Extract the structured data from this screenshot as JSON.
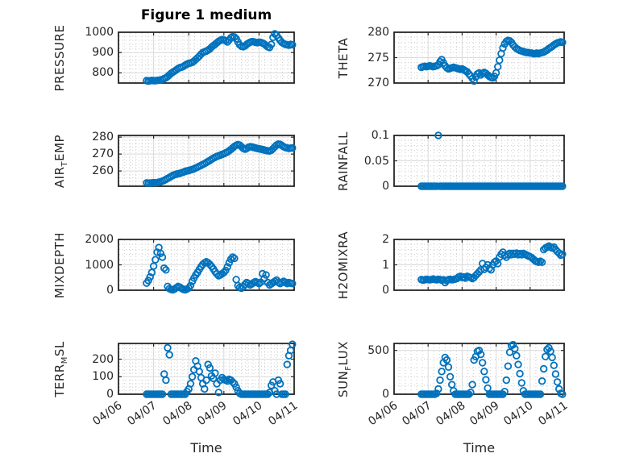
{
  "title": "Figure 1 medium",
  "xlabel": "Time",
  "colors": {
    "marker": "#0072BD",
    "axis": "#262626",
    "grid_major": "#d9d9d9",
    "grid_minor": "#cdcdcd",
    "background": "#ffffff"
  },
  "chart_data": {
    "type": "scatter",
    "title": "Figure 1 medium",
    "xlabel": "Time",
    "marker": "open-circle",
    "grid": true,
    "minor_grid": true,
    "x_unit": "days since 04/06",
    "x_ticks": {
      "values": [
        0,
        1,
        2,
        3,
        4,
        5
      ],
      "labels": [
        "04/06",
        "04/07",
        "04/08",
        "04/09",
        "04/10",
        "04/11"
      ]
    },
    "x": [
      0.8,
      0.85,
      0.9,
      0.95,
      1,
      1.05,
      1.1,
      1.15,
      1.2,
      1.25,
      1.3,
      1.35,
      1.4,
      1.45,
      1.5,
      1.55,
      1.6,
      1.65,
      1.7,
      1.75,
      1.8,
      1.85,
      1.9,
      1.95,
      2,
      2.05,
      2.1,
      2.15,
      2.2,
      2.25,
      2.3,
      2.35,
      2.4,
      2.45,
      2.5,
      2.55,
      2.6,
      2.65,
      2.7,
      2.75,
      2.8,
      2.85,
      2.9,
      2.95,
      3,
      3.05,
      3.1,
      3.15,
      3.2,
      3.25,
      3.3,
      3.35,
      3.4,
      3.45,
      3.5,
      3.55,
      3.6,
      3.65,
      3.7,
      3.75,
      3.8,
      3.85,
      3.9,
      3.95,
      4,
      4.05,
      4.1,
      4.15,
      4.2,
      4.25,
      4.3,
      4.35,
      4.4,
      4.45,
      4.5,
      4.55,
      4.6,
      4.65,
      4.7,
      4.75,
      4.8,
      4.85,
      4.9,
      4.95
    ],
    "plots": [
      {
        "id": "pressure",
        "ylabel": "PRESSURE",
        "ylabel_parts": [
          {
            "text": "PRESSURE",
            "sub": false
          }
        ],
        "ylim": [
          750,
          1000
        ],
        "yticks": [
          800,
          900,
          1000
        ],
        "ytick_labels": [
          "800",
          "900",
          "1000"
        ],
        "minor_y_step": 20,
        "values": [
          762,
          760,
          761,
          763,
          762,
          761,
          763,
          764,
          765,
          768,
          772,
          776,
          782,
          790,
          798,
          804,
          809,
          815,
          822,
          826,
          828,
          832,
          838,
          843,
          847,
          849,
          852,
          858,
          866,
          874,
          882,
          892,
          900,
          904,
          907,
          912,
          918,
          927,
          934,
          940,
          948,
          955,
          960,
          964,
          962,
          958,
          952,
          962,
          973,
          978,
          976,
          968,
          952,
          938,
          931,
          929,
          933,
          940,
          946,
          951,
          954,
          953,
          950,
          949,
          951,
          950,
          947,
          942,
          935,
          928,
          925,
          940,
          975,
          992,
          985,
          972,
          960,
          950,
          945,
          940,
          938,
          936,
          940,
          938
        ]
      },
      {
        "id": "theta",
        "ylabel": "THETA",
        "ylabel_parts": [
          {
            "text": "THETA",
            "sub": false
          }
        ],
        "ylim": [
          270,
          280
        ],
        "yticks": [
          270,
          275,
          280
        ],
        "ytick_labels": [
          "270",
          "275",
          "280"
        ],
        "minor_y_step": 1,
        "values": [
          273.1,
          273.2,
          273.3,
          273.2,
          273.3,
          273.4,
          273.3,
          273.2,
          273.3,
          273.4,
          273.6,
          274.2,
          274.6,
          274,
          273.4,
          273,
          272.8,
          272.9,
          273,
          273.1,
          273,
          272.9,
          272.8,
          272.7,
          272.8,
          272.6,
          272.4,
          272.2,
          271.8,
          271.4,
          270.9,
          270.4,
          271.2,
          271.8,
          272,
          271.6,
          271.9,
          272.1,
          271.9,
          271.6,
          271.3,
          271.1,
          271,
          271.3,
          272,
          273.2,
          274.5,
          275.8,
          276.9,
          277.7,
          278.2,
          278.4,
          278.3,
          278,
          277.5,
          277.1,
          276.8,
          276.6,
          276.4,
          276.3,
          276.2,
          276.1,
          276,
          276,
          275.9,
          275.9,
          275.8,
          275.8,
          275.9,
          275.8,
          275.9,
          276,
          276.1,
          276.3,
          276.5,
          276.8,
          277,
          277.2,
          277.5,
          277.7,
          277.9,
          278,
          278.1,
          278
        ]
      },
      {
        "id": "airtemp",
        "ylabel": "AIR_TEMP",
        "ylabel_parts": [
          {
            "text": "AIR",
            "sub": false
          },
          {
            "text": "T",
            "sub": true
          },
          {
            "text": "EMP",
            "sub": false
          }
        ],
        "ylim": [
          251,
          281
        ],
        "yticks": [
          260,
          270,
          280
        ],
        "ytick_labels": [
          "260",
          "270",
          "280"
        ],
        "minor_y_step": 2,
        "values": [
          253,
          252.8,
          252.9,
          253,
          253.1,
          253,
          253.2,
          253.4,
          253.6,
          254,
          254.5,
          255,
          255.6,
          256.2,
          256.8,
          257.4,
          257.8,
          258.2,
          258.4,
          258.6,
          259,
          259.4,
          259.8,
          260.1,
          260.3,
          260.6,
          260.9,
          261.3,
          261.8,
          262.3,
          262.8,
          263.3,
          263.9,
          264.4,
          265,
          265.6,
          266.2,
          266.9,
          267.5,
          268.1,
          268.6,
          269,
          269.4,
          269.8,
          270.2,
          270.7,
          271.2,
          271.9,
          272.7,
          273.6,
          274.5,
          275.2,
          275.6,
          275.3,
          274.4,
          273.4,
          272.9,
          273.3,
          274,
          274.4,
          274.2,
          273.9,
          273.6,
          273.3,
          273.1,
          272.9,
          272.7,
          272.4,
          272.1,
          271.9,
          271.8,
          272.3,
          273.2,
          274.3,
          275.3,
          275.9,
          275.7,
          275.1,
          274.4,
          273.9,
          273.6,
          273.4,
          273.5,
          273.6
        ]
      },
      {
        "id": "rainfall",
        "ylabel": "RAINFALL",
        "ylabel_parts": [
          {
            "text": "RAINFALL",
            "sub": false
          }
        ],
        "ylim": [
          0,
          0.1
        ],
        "yticks": [
          0,
          0.05,
          0.1
        ],
        "ytick_labels": [
          "0",
          "0.05",
          "0.1"
        ],
        "minor_y_step": 0.01,
        "values": [
          0,
          0,
          0,
          0,
          0,
          0,
          0,
          0,
          0,
          0,
          0.1,
          0,
          0,
          0,
          0,
          0,
          0,
          0,
          0,
          0,
          0,
          0,
          0,
          0,
          0,
          0,
          0,
          0,
          0,
          0,
          0,
          0,
          0,
          0,
          0,
          0,
          0,
          0,
          0,
          0,
          0,
          0,
          0,
          0,
          0,
          0,
          0,
          0,
          0,
          0,
          0,
          0,
          0,
          0,
          0,
          0,
          0,
          0,
          0,
          0,
          0,
          0,
          0,
          0,
          0,
          0,
          0,
          0,
          0,
          0,
          0,
          0,
          0,
          0,
          0,
          0,
          0,
          0,
          0,
          0,
          0,
          0,
          0,
          0
        ]
      },
      {
        "id": "mixdepth",
        "ylabel": "MIXDEPTH",
        "ylabel_parts": [
          {
            "text": "MIXDEPTH",
            "sub": false
          }
        ],
        "ylim": [
          0,
          2000
        ],
        "yticks": [
          0,
          1000,
          2000
        ],
        "ytick_labels": [
          "0",
          "1000",
          "2000"
        ],
        "minor_y_step": 200,
        "values": [
          280,
          380,
          520,
          700,
          950,
          1200,
          1500,
          1680,
          1450,
          1300,
          870,
          800,
          150,
          60,
          30,
          20,
          50,
          100,
          150,
          120,
          70,
          30,
          20,
          45,
          90,
          180,
          350,
          480,
          600,
          700,
          820,
          930,
          1020,
          1080,
          1120,
          1080,
          1020,
          940,
          840,
          730,
          640,
          570,
          600,
          650,
          700,
          780,
          920,
          1080,
          1220,
          1300,
          1250,
          420,
          180,
          110,
          80,
          140,
          230,
          300,
          260,
          210,
          250,
          300,
          340,
          300,
          260,
          310,
          650,
          460,
          600,
          300,
          210,
          250,
          300,
          350,
          400,
          310,
          260,
          300,
          350,
          310,
          260,
          300,
          280,
          260
        ]
      },
      {
        "id": "h2omixra",
        "ylabel": "H2OMIXRA",
        "ylabel_parts": [
          {
            "text": "H2OMIXRA",
            "sub": false
          }
        ],
        "ylim": [
          0,
          2
        ],
        "yticks": [
          0,
          1,
          2
        ],
        "ytick_labels": [
          "0",
          "1",
          "2"
        ],
        "minor_y_step": 0.2,
        "values": [
          0.42,
          0.4,
          0.41,
          0.43,
          0.42,
          0.41,
          0.42,
          0.44,
          0.42,
          0.41,
          0.43,
          0.42,
          0.4,
          0.41,
          0.3,
          0.38,
          0.42,
          0.43,
          0.41,
          0.42,
          0.44,
          0.46,
          0.52,
          0.55,
          0.5,
          0.52,
          0.48,
          0.55,
          0.52,
          0.5,
          0.46,
          0.5,
          0.58,
          0.65,
          0.72,
          0.8,
          1.05,
          0.82,
          0.9,
          1,
          0.86,
          0.8,
          1,
          1.1,
          1.15,
          1.05,
          1.3,
          1.42,
          1.5,
          1.38,
          1.3,
          1.4,
          1.45,
          1.4,
          1.45,
          1.42,
          1.46,
          1.4,
          1.44,
          1.4,
          1.45,
          1.42,
          1.38,
          1.35,
          1.32,
          1.28,
          1.22,
          1.16,
          1.12,
          1.1,
          1.14,
          1.1,
          1.6,
          1.66,
          1.7,
          1.74,
          1.7,
          1.66,
          1.7,
          1.6,
          1.52,
          1.46,
          1.38,
          1.42
        ]
      },
      {
        "id": "terrmsl",
        "ylabel": "TERR_MSL",
        "ylabel_parts": [
          {
            "text": "TERR",
            "sub": false
          },
          {
            "text": "M",
            "sub": true
          },
          {
            "text": "SL",
            "sub": false
          }
        ],
        "ylim": [
          0,
          290
        ],
        "yticks": [
          0,
          100,
          200
        ],
        "ytick_labels": [
          "0",
          "100",
          "200"
        ],
        "minor_y_step": 20,
        "values": [
          0,
          0,
          0,
          0,
          0,
          0,
          0,
          0,
          0,
          0,
          115,
          80,
          265,
          225,
          0,
          0,
          0,
          0,
          0,
          0,
          0,
          0,
          0,
          15,
          30,
          60,
          100,
          140,
          190,
          160,
          130,
          95,
          60,
          30,
          80,
          170,
          150,
          105,
          90,
          120,
          60,
          10,
          80,
          95,
          85,
          80,
          75,
          85,
          80,
          70,
          60,
          40,
          20,
          5,
          0,
          0,
          0,
          0,
          0,
          0,
          0,
          0,
          0,
          0,
          0,
          0,
          0,
          0,
          0,
          0,
          10,
          50,
          70,
          20,
          0,
          80,
          60,
          0,
          0,
          0,
          170,
          220,
          250,
          285
        ]
      },
      {
        "id": "sunflux",
        "ylabel": "SUN_FLUX",
        "ylabel_parts": [
          {
            "text": "SUN",
            "sub": false
          },
          {
            "text": "F",
            "sub": true
          },
          {
            "text": "LUX",
            "sub": false
          }
        ],
        "ylim": [
          0,
          580
        ],
        "yticks": [
          0,
          500
        ],
        "ytick_labels": [
          "0",
          "500"
        ],
        "minor_y_step": 100,
        "values": [
          0,
          0,
          0,
          0,
          0,
          0,
          0,
          0,
          0,
          10,
          60,
          160,
          260,
          360,
          420,
          390,
          310,
          200,
          110,
          40,
          0,
          0,
          0,
          0,
          0,
          0,
          0,
          0,
          0,
          20,
          110,
          390,
          430,
          490,
          500,
          455,
          360,
          260,
          165,
          70,
          0,
          0,
          0,
          0,
          0,
          0,
          0,
          0,
          0,
          30,
          160,
          320,
          480,
          555,
          565,
          520,
          440,
          340,
          235,
          130,
          40,
          0,
          0,
          0,
          0,
          0,
          0,
          0,
          0,
          0,
          0,
          150,
          290,
          430,
          510,
          530,
          490,
          420,
          330,
          230,
          140,
          60,
          10,
          0
        ]
      }
    ]
  }
}
